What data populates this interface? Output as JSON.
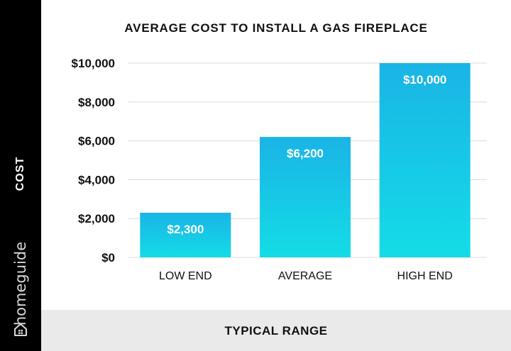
{
  "chart_data": {
    "type": "bar",
    "title": "AVERAGE COST TO INSTALL A GAS FIREPLACE",
    "xlabel": "TYPICAL RANGE",
    "ylabel": "COST",
    "categories": [
      "LOW END",
      "AVERAGE",
      "HIGH END"
    ],
    "values": [
      2300,
      6200,
      10000
    ],
    "data_labels": [
      "$2,300",
      "$6,200",
      "$10,000"
    ],
    "ylim": [
      0,
      10000
    ],
    "yticks": [
      0,
      2000,
      4000,
      6000,
      8000,
      10000
    ],
    "ytick_labels": [
      "$0",
      "$2,000",
      "$4,000",
      "$6,000",
      "$8,000",
      "$10,000"
    ],
    "grid": true,
    "bar_color_top": "#1ab4e6",
    "bar_color_bottom": "#14dce6"
  },
  "brand": "homeguide"
}
